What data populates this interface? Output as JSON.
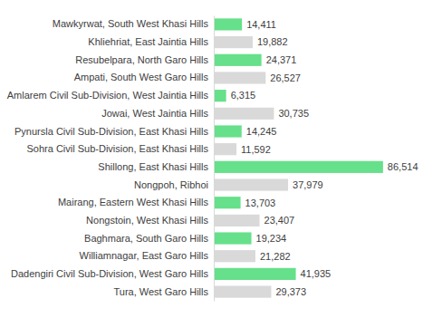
{
  "chart_data": {
    "type": "bar",
    "orientation": "horizontal",
    "categories": [
      "Mawkyrwat, South West Khasi Hills",
      "Khliehriat, East Jaintia Hills",
      "Resubelpara, North Garo Hills",
      "Ampati, South West Garo Hills",
      "Amlarem Civil Sub-Division, West Jaintia Hills",
      "Jowai, West Jaintia Hills",
      "Pynursla Civil Sub-Division, East Khasi Hills",
      "Sohra Civil Sub-Division, East Khasi Hills",
      "Shillong, East Khasi Hills",
      "Nongpoh, Ribhoi",
      "Mairang, Eastern West Khasi Hills",
      "Nongstoin, West Khasi Hills",
      "Baghmara, South Garo Hills",
      "Williamnagar, East Garo Hills",
      "Dadengiri Civil Sub-Division, West Garo Hills",
      "Tura, West Garo Hills"
    ],
    "values": [
      14411,
      19882,
      24371,
      26527,
      6315,
      30735,
      14245,
      11592,
      86514,
      37979,
      13703,
      23407,
      19234,
      21282,
      41935,
      29373
    ],
    "value_labels": [
      "14,411",
      "19,882",
      "24,371",
      "26,527",
      "6,315",
      "30,735",
      "14,245",
      "11,592",
      "86,514",
      "37,979",
      "13,703",
      "23,407",
      "19,234",
      "21,282",
      "41,935",
      "29,373"
    ],
    "colors": [
      "#66e08a",
      "#d9d9d9",
      "#66e08a",
      "#d9d9d9",
      "#66e08a",
      "#d9d9d9",
      "#66e08a",
      "#d9d9d9",
      "#66e08a",
      "#d9d9d9",
      "#66e08a",
      "#d9d9d9",
      "#66e08a",
      "#d9d9d9",
      "#66e08a",
      "#d9d9d9"
    ],
    "xlim": [
      0,
      100000
    ],
    "data_labels": true,
    "tick_labels": "y",
    "grid": false
  }
}
